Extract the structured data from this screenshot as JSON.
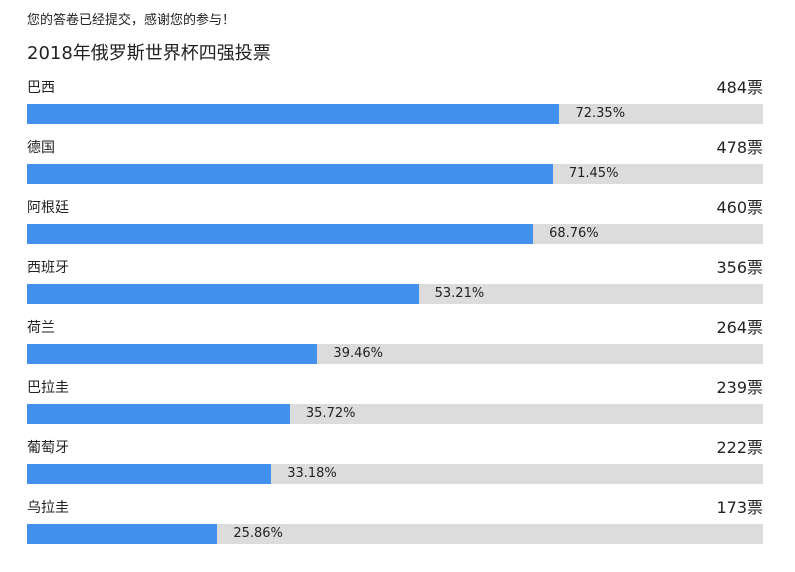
{
  "notice": "您的答卷已经提交，感谢您的参与！",
  "poll": {
    "title": "2018年俄罗斯世界杯四强投票"
  },
  "colors": {
    "bar": "#4291ee",
    "track": "#dcdcdc"
  },
  "chart_data": {
    "type": "bar",
    "orientation": "horizontal",
    "title": "2018年俄罗斯世界杯四强投票",
    "categories": [
      "巴西",
      "德国",
      "阿根廷",
      "西班牙",
      "荷兰",
      "巴拉圭",
      "葡萄牙",
      "乌拉圭"
    ],
    "vote_labels": [
      "484票",
      "478票",
      "460票",
      "356票",
      "264票",
      "239票",
      "222票",
      "173票"
    ],
    "votes": [
      484,
      478,
      460,
      356,
      264,
      239,
      222,
      173
    ],
    "percent_labels": [
      "72.35%",
      "71.45%",
      "68.76%",
      "53.21%",
      "39.46%",
      "35.72%",
      "33.18%",
      "25.86%"
    ],
    "percentages": [
      72.35,
      71.45,
      68.76,
      53.21,
      39.46,
      35.72,
      33.18,
      25.86
    ],
    "xlim": [
      0,
      100
    ],
    "grid": false,
    "legend": "none"
  }
}
